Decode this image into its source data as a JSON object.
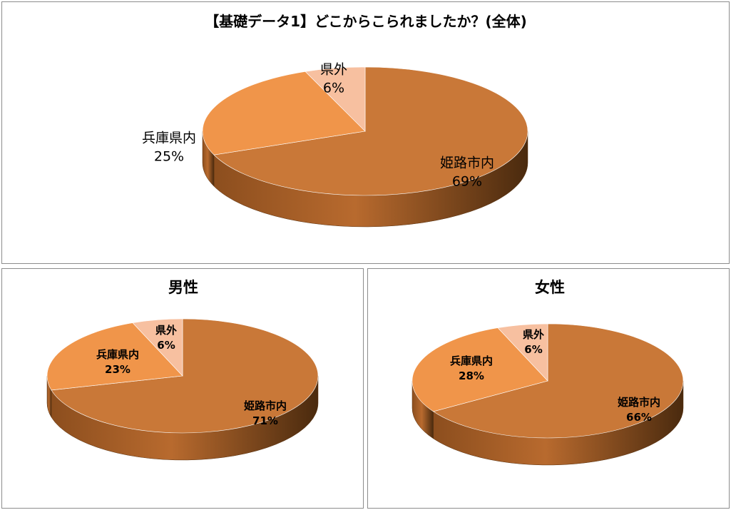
{
  "colors": {
    "姫路市内": "#C97838",
    "兵庫県内": "#F0954A",
    "県外": "#F7C0A0",
    "side_dark": "#4A2A0E",
    "side_light": "#B86A2E"
  },
  "chart_data": [
    {
      "type": "pie",
      "title": "【基礎データ1】どこからこられましたか？(全体)",
      "slices": [
        {
          "label": "姫路市内",
          "value": 69,
          "display": "69%"
        },
        {
          "label": "兵庫県内",
          "value": 25,
          "display": "25%"
        },
        {
          "label": "県外",
          "value": 6,
          "display": "6%"
        }
      ]
    },
    {
      "type": "pie",
      "title": "男性",
      "slices": [
        {
          "label": "姫路市内",
          "value": 71,
          "display": "71%"
        },
        {
          "label": "兵庫県内",
          "value": 23,
          "display": "23%"
        },
        {
          "label": "県外",
          "value": 6,
          "display": "6%"
        }
      ]
    },
    {
      "type": "pie",
      "title": "女性",
      "slices": [
        {
          "label": "姫路市内",
          "value": 66,
          "display": "66%"
        },
        {
          "label": "兵庫県内",
          "value": 28,
          "display": "28%"
        },
        {
          "label": "県外",
          "value": 6,
          "display": "6%"
        }
      ]
    }
  ]
}
